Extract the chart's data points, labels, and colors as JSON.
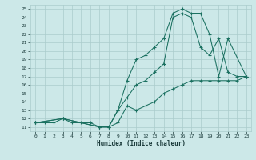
{
  "xlabel": "Humidex (Indice chaleur)",
  "bg_color": "#cce8e8",
  "grid_color": "#aacccc",
  "line_color": "#1a7060",
  "xlim": [
    -0.5,
    23.5
  ],
  "ylim": [
    10.5,
    25.5
  ],
  "xticks": [
    0,
    1,
    2,
    3,
    4,
    5,
    6,
    7,
    8,
    9,
    10,
    11,
    12,
    13,
    14,
    15,
    16,
    17,
    18,
    19,
    20,
    21,
    22,
    23
  ],
  "yticks": [
    11,
    12,
    13,
    14,
    15,
    16,
    17,
    18,
    19,
    20,
    21,
    22,
    23,
    24,
    25
  ],
  "line1_x": [
    0,
    1,
    2,
    3,
    4,
    5,
    6,
    7,
    8,
    9,
    10,
    11,
    12,
    13,
    14,
    15,
    16,
    17,
    18,
    19,
    20,
    21,
    22,
    23
  ],
  "line1_y": [
    11.5,
    11.5,
    11.5,
    12.0,
    11.5,
    11.5,
    11.5,
    11.0,
    11.0,
    11.5,
    13.5,
    13.0,
    13.5,
    14.0,
    15.0,
    15.5,
    16.0,
    16.5,
    16.5,
    16.5,
    16.5,
    16.5,
    16.5,
    17.0
  ],
  "line2_x": [
    0,
    3,
    7,
    8,
    9,
    10,
    11,
    12,
    13,
    14,
    15,
    16,
    17,
    18,
    19,
    20,
    21,
    23
  ],
  "line2_y": [
    11.5,
    12.0,
    11.0,
    11.0,
    13.0,
    16.5,
    19.0,
    19.5,
    20.5,
    21.5,
    24.5,
    25.0,
    24.5,
    24.5,
    22.0,
    17.0,
    21.5,
    17.0
  ],
  "line3_x": [
    0,
    3,
    7,
    8,
    9,
    10,
    11,
    12,
    13,
    14,
    15,
    16,
    17,
    18,
    19,
    20,
    21,
    22,
    23
  ],
  "line3_y": [
    11.5,
    12.0,
    11.0,
    11.0,
    13.0,
    14.5,
    16.0,
    16.5,
    17.5,
    18.5,
    24.0,
    24.5,
    24.0,
    20.5,
    19.5,
    21.5,
    17.5,
    17.0,
    17.0
  ]
}
